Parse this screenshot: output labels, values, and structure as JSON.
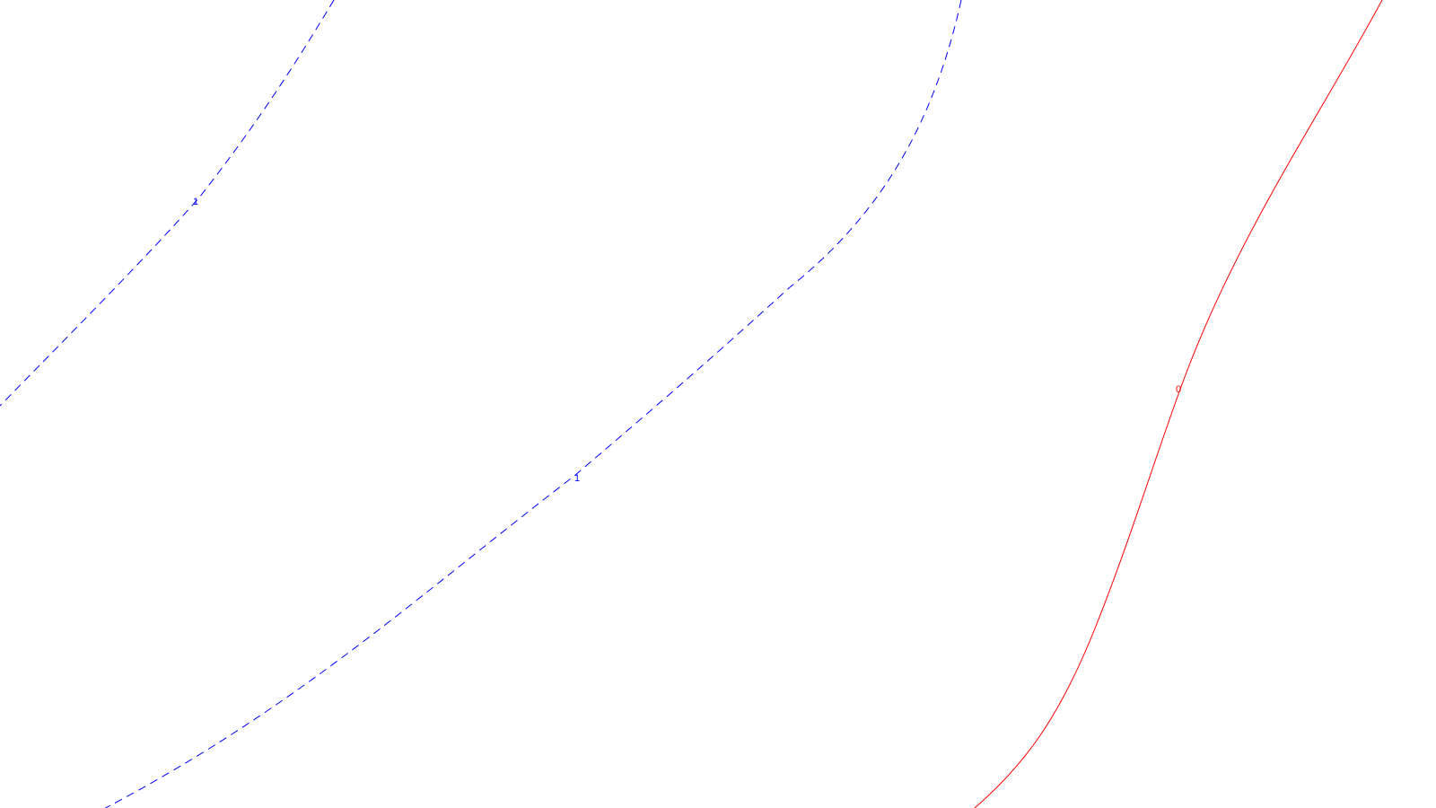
{
  "contours": [
    {
      "id": "contour-1-left",
      "label": "1",
      "color": "#0000ff",
      "style": "dashed"
    },
    {
      "id": "contour-1-center",
      "label": "1",
      "color": "#0000ff",
      "style": "dashed"
    },
    {
      "id": "contour-0-right",
      "label": "0",
      "color": "#ff0000",
      "style": "solid"
    }
  ],
  "background": "#ffffff"
}
